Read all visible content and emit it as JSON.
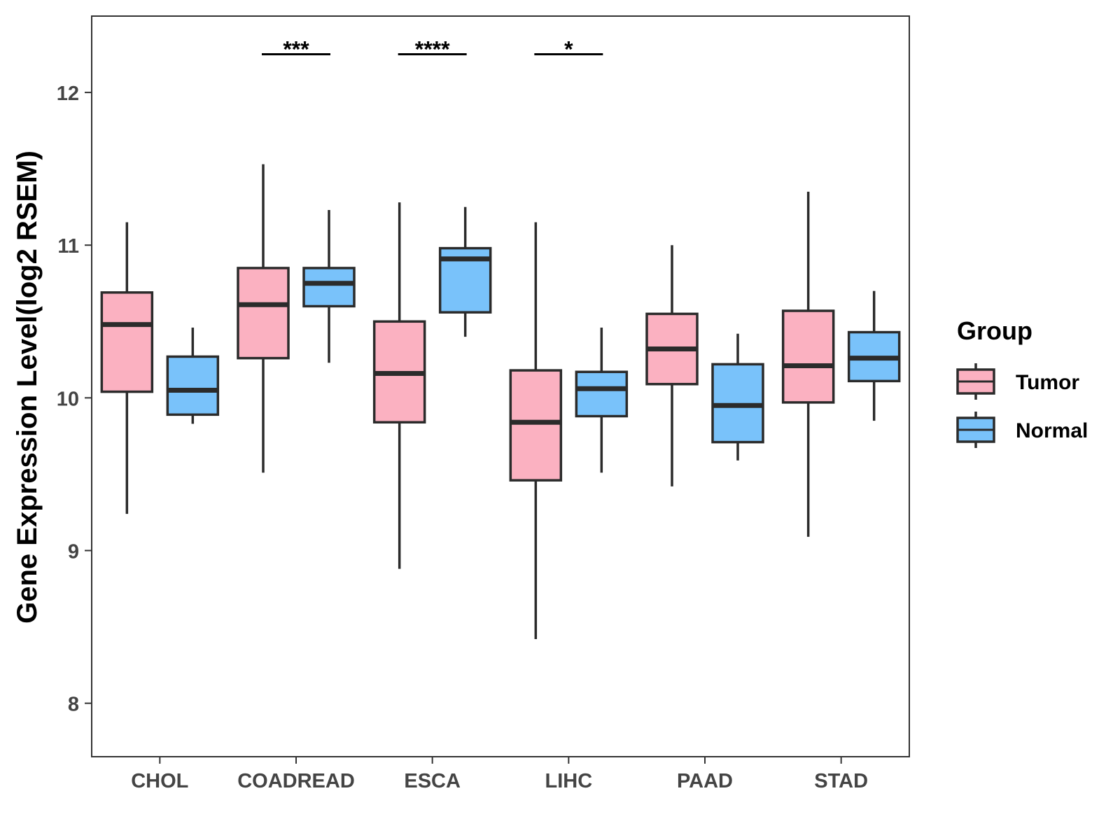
{
  "chart_data": {
    "type": "boxplot",
    "title": "",
    "xlabel": "",
    "ylabel": "Gene Expression Level(log2 RSEM)",
    "ylim": [
      7.65,
      12.5
    ],
    "yticks": [
      8,
      9,
      10,
      11,
      12
    ],
    "grid": false,
    "legend_position": "right",
    "legend_title": "Group",
    "categories": [
      "CHOL",
      "COADREAD",
      "ESCA",
      "LIHC",
      "PAAD",
      "STAD"
    ],
    "series": [
      {
        "name": "Tumor",
        "color": "#FBB1C1",
        "boxes": [
          {
            "min": 9.24,
            "q1": 10.04,
            "median": 10.48,
            "q3": 10.69,
            "max": 11.15
          },
          {
            "min": 9.51,
            "q1": 10.26,
            "median": 10.61,
            "q3": 10.85,
            "max": 11.53
          },
          {
            "min": 8.88,
            "q1": 9.84,
            "median": 10.16,
            "q3": 10.5,
            "max": 11.28
          },
          {
            "min": 8.42,
            "q1": 9.46,
            "median": 9.84,
            "q3": 10.18,
            "max": 11.15
          },
          {
            "min": 9.42,
            "q1": 10.09,
            "median": 10.32,
            "q3": 10.55,
            "max": 11.0
          },
          {
            "min": 9.09,
            "q1": 9.97,
            "median": 10.21,
            "q3": 10.57,
            "max": 11.35
          }
        ]
      },
      {
        "name": "Normal",
        "color": "#79C2FA",
        "boxes": [
          {
            "min": 9.83,
            "q1": 9.89,
            "median": 10.05,
            "q3": 10.27,
            "max": 10.46
          },
          {
            "min": 10.23,
            "q1": 10.6,
            "median": 10.75,
            "q3": 10.85,
            "max": 11.23
          },
          {
            "min": 10.4,
            "q1": 10.56,
            "median": 10.91,
            "q3": 10.98,
            "max": 11.25
          },
          {
            "min": 9.51,
            "q1": 9.88,
            "median": 10.06,
            "q3": 10.17,
            "max": 10.46
          },
          {
            "min": 9.59,
            "q1": 9.71,
            "median": 9.95,
            "q3": 10.22,
            "max": 10.42
          },
          {
            "min": 9.85,
            "q1": 10.11,
            "median": 10.26,
            "q3": 10.43,
            "max": 10.7
          }
        ]
      }
    ],
    "significance": [
      {
        "category": "COADREAD",
        "label": "***"
      },
      {
        "category": "ESCA",
        "label": "****"
      },
      {
        "category": "LIHC",
        "label": "*"
      }
    ],
    "significance_y": 12.25
  }
}
